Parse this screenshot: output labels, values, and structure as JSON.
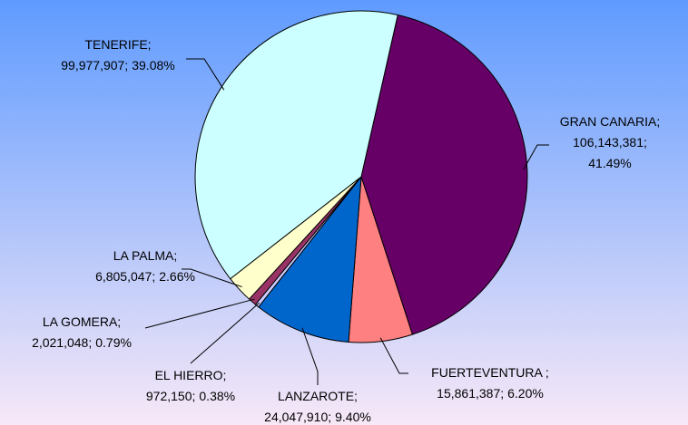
{
  "chart_data": {
    "type": "pie",
    "categories": [
      "GRAN CANARIA;",
      "FUERTEVENTURA ;",
      "LANZAROTE;",
      "EL HIERRO;",
      "LA GOMERA;",
      "LA PALMA;",
      "TENERIFE;"
    ],
    "values": [
      106143381,
      15861387,
      24047910,
      972150,
      2021048,
      6805047,
      99977907
    ],
    "value_labels": [
      "106,143,381;",
      "15,861,387;",
      "24,047,910;",
      "972,150;",
      "2,021,048;",
      "6,805,047;",
      "99,977,907;"
    ],
    "percentages": [
      41.49,
      6.2,
      9.4,
      0.38,
      0.79,
      2.66,
      39.08
    ],
    "percentage_labels": [
      "41.49%",
      "6.20%",
      "9.40%",
      "0.38%",
      "0.79%",
      "2.66%",
      "39.08%"
    ],
    "colors": [
      "#660066",
      "#ff8080",
      "#0066cc",
      "#ccccff",
      "#993366",
      "#ffffcc",
      "#ccffff"
    ]
  }
}
